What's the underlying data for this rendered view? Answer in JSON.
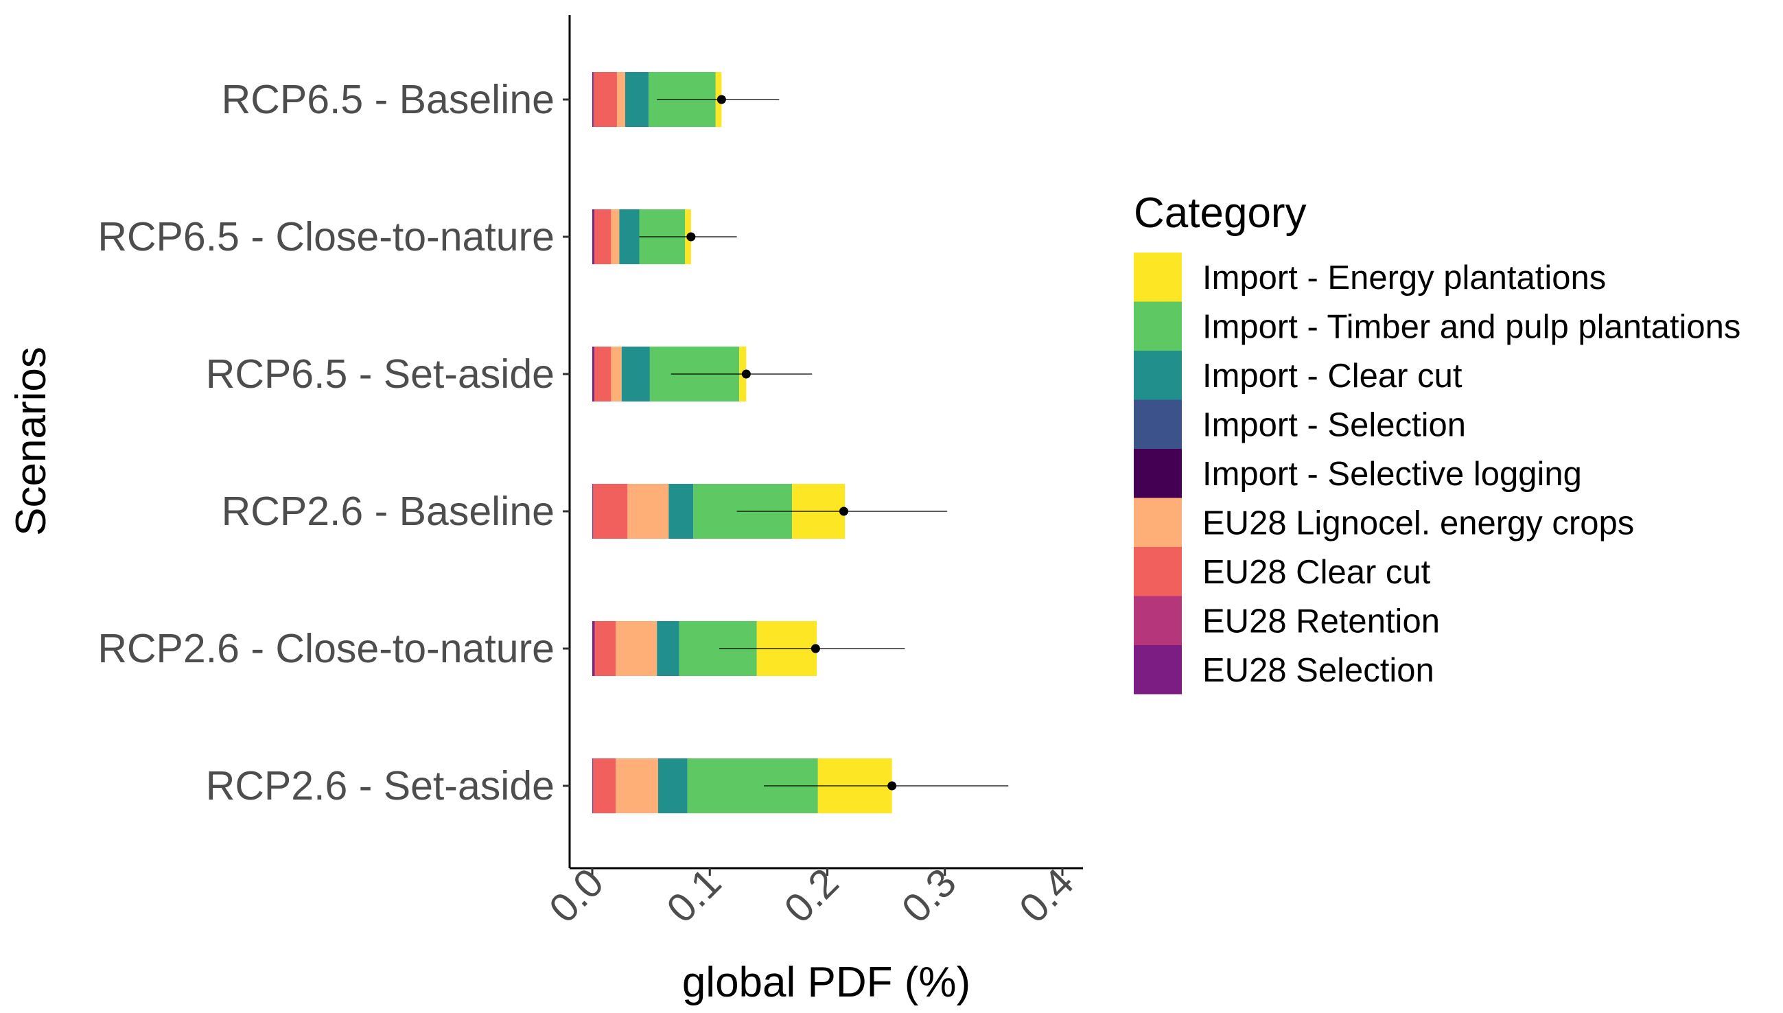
{
  "chart_data": {
    "type": "bar",
    "orientation": "horizontal",
    "stacked": true,
    "categories": [
      "RCP6.5 - Baseline",
      "RCP6.5 - Close-to-nature",
      "RCP6.5 - Set-aside",
      "RCP2.6 - Baseline",
      "RCP2.6 - Close-to-nature",
      "RCP2.6 - Set-aside"
    ],
    "xlabel": "global PDF (%)",
    "ylabel": "Scenarios",
    "xlim": [
      0,
      0.4
    ],
    "xticks": [
      "0.0",
      "0.1",
      "0.2",
      "0.3",
      "0.4"
    ],
    "grid": false,
    "legend": {
      "title": "Category",
      "position": "right"
    },
    "series": [
      {
        "name": "EU28 Selection",
        "color": "#7b1d82",
        "values": [
          0.001,
          0.0015,
          0.0015,
          0.0005,
          0.0015,
          0.0005
        ]
      },
      {
        "name": "EU28 Retention",
        "color": "#b5367a",
        "values": [
          0.0005,
          0.0005,
          0.0005,
          0.0005,
          0.001,
          0.0005
        ]
      },
      {
        "name": "EU28 Clear cut",
        "color": "#f1605d",
        "values": [
          0.0195,
          0.014,
          0.014,
          0.029,
          0.0175,
          0.019
        ]
      },
      {
        "name": "EU28 Lignocel. energy crops",
        "color": "#feaf77",
        "values": [
          0.007,
          0.007,
          0.009,
          0.035,
          0.035,
          0.036
        ]
      },
      {
        "name": "Import - Selective logging",
        "color": "#440154",
        "values": [
          0,
          0,
          0,
          0,
          0,
          0
        ]
      },
      {
        "name": "Import - Selection",
        "color": "#3b528b",
        "values": [
          0,
          0,
          0,
          0,
          0,
          0
        ]
      },
      {
        "name": "Import - Clear cut",
        "color": "#21908c",
        "values": [
          0.02,
          0.017,
          0.024,
          0.021,
          0.019,
          0.025
        ]
      },
      {
        "name": "Import - Timber and pulp plantations",
        "color": "#5ec962",
        "values": [
          0.057,
          0.039,
          0.076,
          0.084,
          0.066,
          0.111
        ]
      },
      {
        "name": "Import - Energy plantations",
        "color": "#fde725",
        "values": [
          0.005,
          0.005,
          0.006,
          0.045,
          0.051,
          0.063
        ]
      }
    ],
    "mean": [
      0.11,
      0.084,
      0.131,
      0.214,
      0.19,
      0.255
    ],
    "error_low": [
      0.055,
      0.04,
      0.067,
      0.123,
      0.108,
      0.146
    ],
    "error_high": [
      0.159,
      0.123,
      0.187,
      0.302,
      0.266,
      0.354
    ],
    "legend_order": [
      "Import - Energy plantations",
      "Import - Timber and pulp plantations",
      "Import - Clear cut",
      "Import - Selection",
      "Import - Selective logging",
      "EU28 Lignocel. energy crops",
      "EU28 Clear cut",
      "EU28 Retention",
      "EU28 Selection"
    ]
  }
}
